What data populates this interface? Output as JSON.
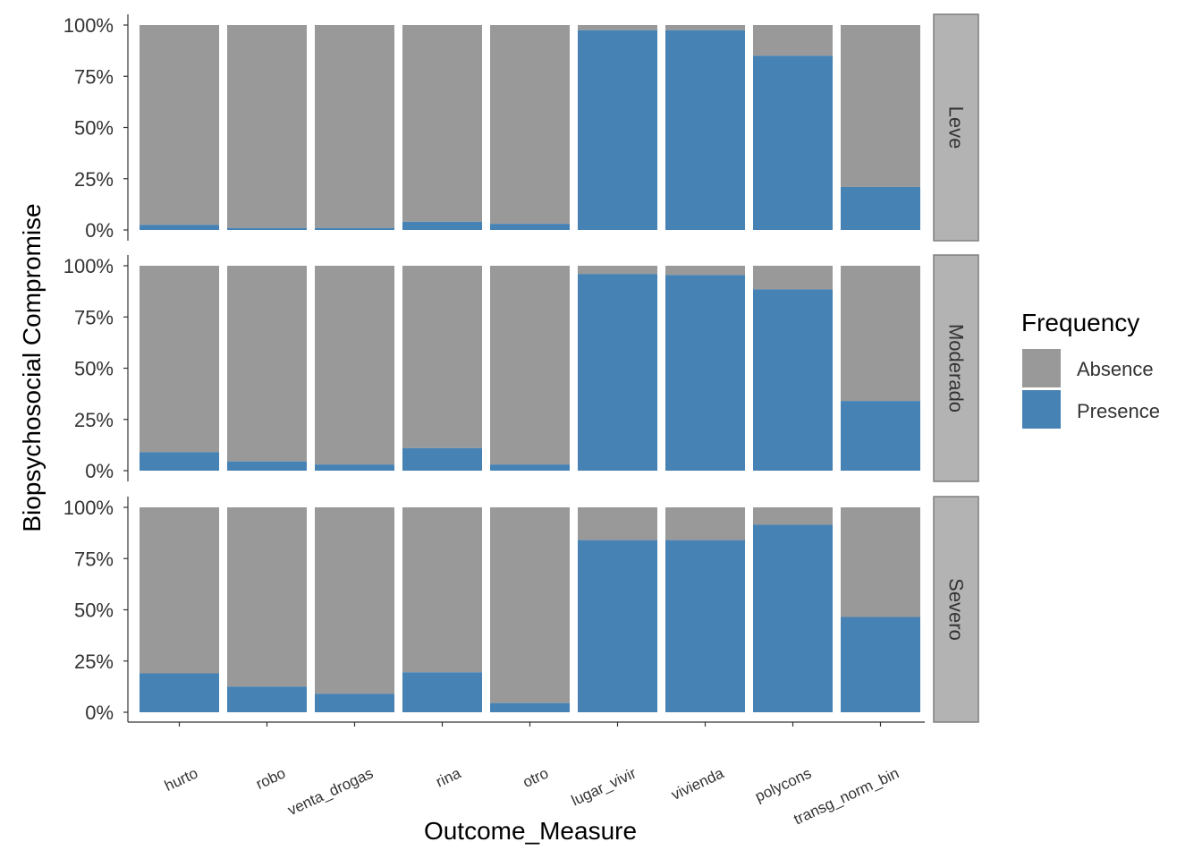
{
  "chart_data": {
    "type": "bar",
    "stacked": "percent",
    "xlabel": "Outcome_Measure",
    "ylabel": "Biopsychosocial Compromise",
    "categories": [
      "hurto",
      "robo",
      "venta_drogas",
      "rina",
      "otro",
      "lugar_vivir",
      "vivienda",
      "polycons",
      "transg_norm_bin"
    ],
    "y_ticks": [
      "0%",
      "25%",
      "50%",
      "75%",
      "100%"
    ],
    "ylim": [
      0,
      100
    ],
    "legend": {
      "title": "Frequency",
      "placement": "right",
      "entries": [
        {
          "name": "Absence",
          "color": "#999999"
        },
        {
          "name": "Presence",
          "color": "#4682B4"
        }
      ]
    },
    "panels": [
      {
        "label": "Leve",
        "presence": [
          2.5,
          1,
          1,
          4,
          3,
          97.5,
          97.5,
          85,
          21
        ]
      },
      {
        "label": "Moderado",
        "presence": [
          9,
          4.5,
          3,
          11,
          3,
          96,
          95.5,
          88.5,
          34
        ]
      },
      {
        "label": "Severo",
        "presence": [
          19,
          12.5,
          9,
          19.5,
          4.5,
          84,
          84,
          91.5,
          46.5
        ]
      }
    ]
  }
}
